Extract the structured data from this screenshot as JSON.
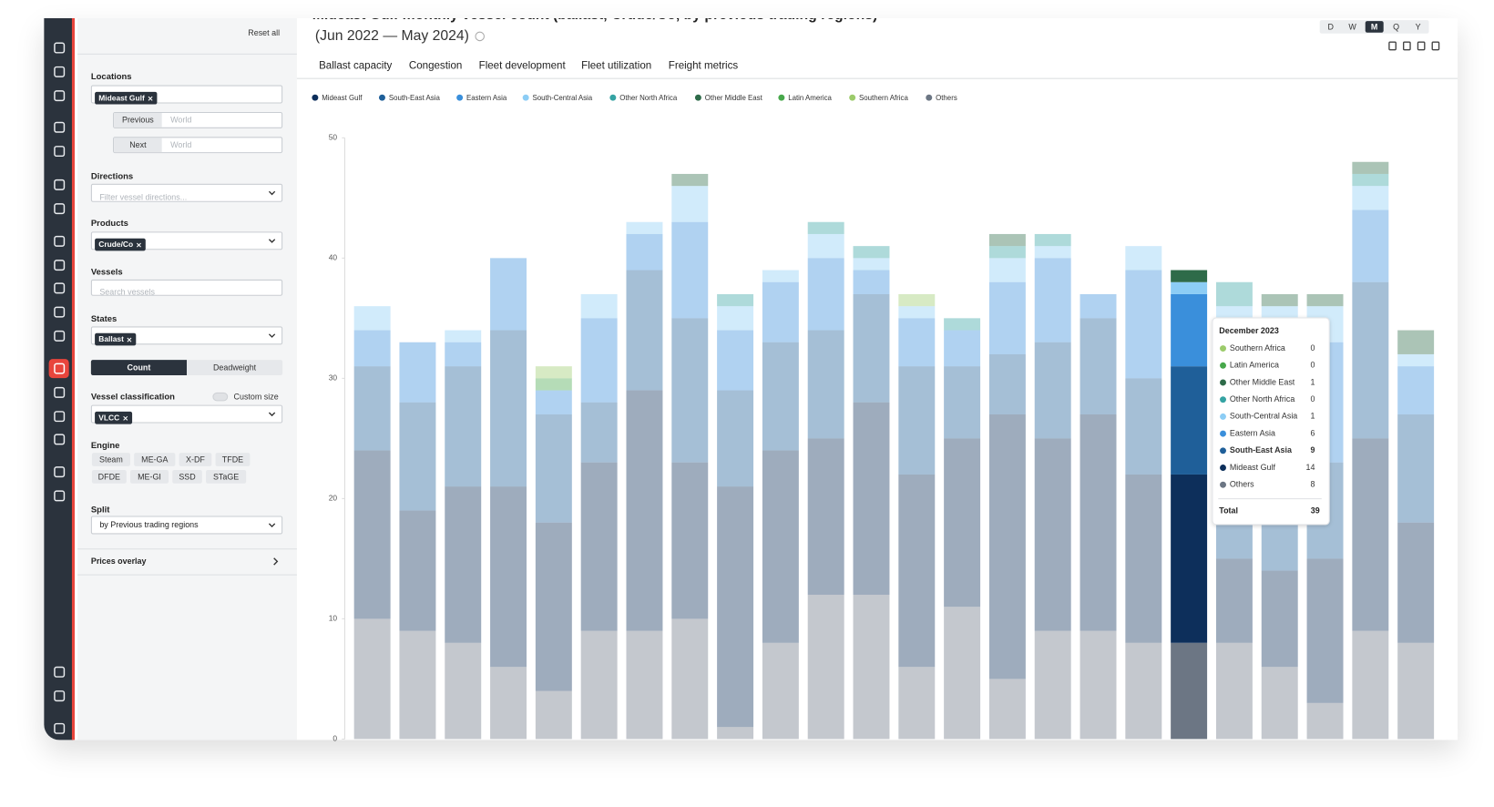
{
  "sidebar": {
    "reset": "Reset all",
    "locations": {
      "label": "Locations",
      "chip": "Mideast Gulf",
      "previous": "Previous",
      "previous_placeholder": "World",
      "next": "Next",
      "next_placeholder": "World"
    },
    "directions": {
      "label": "Directions",
      "placeholder": "Filter vessel directions..."
    },
    "products": {
      "label": "Products",
      "chip": "Crude/Co"
    },
    "vessels": {
      "label": "Vessels",
      "placeholder": "Search vessels"
    },
    "states": {
      "label": "States",
      "chip": "Ballast"
    },
    "measure": [
      "Count",
      "Deadweight"
    ],
    "classification": {
      "label": "Vessel classification",
      "custom": "Custom size",
      "chip": "VLCC"
    },
    "engine": {
      "label": "Engine",
      "options": [
        "Steam",
        "ME-GA",
        "X-DF",
        "TFDE",
        "DFDE",
        "ME-GI",
        "SSD",
        "STaGE"
      ]
    },
    "split": {
      "label": "Split",
      "value": "by Previous trading regions"
    },
    "prices": "Prices overlay"
  },
  "tabs": [
    "Ballast capacity",
    "Congestion",
    "Fleet development",
    "Fleet utilization",
    "Freight metrics"
  ],
  "periods": [
    "D",
    "W",
    "M",
    "Q",
    "Y"
  ],
  "chart_data": {
    "type": "bar",
    "stacked": true,
    "title": "Mideast Gulf monthly vessel count (ballast, Crude/Co, by previous trading regions)",
    "subtitle": "(Jun 2022 — May 2024)",
    "ylim": [
      0,
      50
    ],
    "yticks": [
      0,
      10,
      20,
      30,
      40,
      50
    ],
    "grid": false,
    "series": [
      {
        "name": "Mideast Gulf",
        "color": "#0d2f5b",
        "values": [
          14,
          10,
          13,
          15,
          14,
          14,
          20,
          13,
          20,
          16,
          13,
          16,
          16,
          14,
          22,
          16,
          18,
          14,
          14,
          7,
          8,
          12,
          16,
          10
        ]
      },
      {
        "name": "South-East Asia",
        "color": "#1f5f99",
        "values": [
          7,
          9,
          10,
          13,
          9,
          5,
          10,
          12,
          8,
          9,
          9,
          9,
          9,
          6,
          5,
          8,
          8,
          8,
          9,
          12,
          13,
          8,
          13,
          9
        ]
      },
      {
        "name": "Eastern Asia",
        "color": "#3a8fdb",
        "values": [
          3,
          5,
          2,
          6,
          2,
          7,
          3,
          8,
          5,
          5,
          6,
          2,
          4,
          3,
          6,
          7,
          2,
          9,
          6,
          7,
          7,
          10,
          6,
          4
        ]
      },
      {
        "name": "South-Central Asia",
        "color": "#8ccdf5",
        "values": [
          2,
          0,
          1,
          0,
          0,
          2,
          1,
          3,
          2,
          1,
          2,
          1,
          1,
          0,
          2,
          1,
          0,
          2,
          1,
          2,
          2,
          3,
          2,
          1
        ]
      },
      {
        "name": "Other North Africa",
        "color": "#35a3a3",
        "values": [
          0,
          0,
          0,
          0,
          0,
          0,
          0,
          0,
          1,
          0,
          1,
          1,
          0,
          1,
          1,
          1,
          0,
          0,
          0,
          2,
          0,
          0,
          1,
          0
        ]
      },
      {
        "name": "Other Middle East",
        "color": "#2e6b49",
        "values": [
          0,
          0,
          0,
          0,
          0,
          0,
          0,
          1,
          0,
          0,
          0,
          0,
          0,
          0,
          1,
          0,
          0,
          0,
          1,
          0,
          1,
          1,
          1,
          2
        ]
      },
      {
        "name": "Latin America",
        "color": "#47a84b",
        "values": [
          0,
          0,
          0,
          0,
          1,
          0,
          0,
          0,
          0,
          0,
          0,
          0,
          0,
          0,
          0,
          0,
          0,
          0,
          0,
          0,
          0,
          0,
          0,
          0
        ]
      },
      {
        "name": "Southern Africa",
        "color": "#9ccb6b",
        "values": [
          0,
          0,
          0,
          0,
          1,
          0,
          0,
          0,
          0,
          0,
          0,
          0,
          1,
          0,
          0,
          0,
          0,
          0,
          0,
          0,
          0,
          0,
          0,
          0
        ]
      },
      {
        "name": "Others",
        "color": "#6c7684",
        "values": [
          10,
          9,
          8,
          6,
          4,
          9,
          9,
          10,
          1,
          8,
          12,
          12,
          6,
          11,
          5,
          9,
          9,
          8,
          8,
          8,
          6,
          3,
          9,
          8
        ]
      }
    ],
    "tooltip": {
      "title": "December 2023",
      "total_label": "Total",
      "total": 39
    }
  }
}
